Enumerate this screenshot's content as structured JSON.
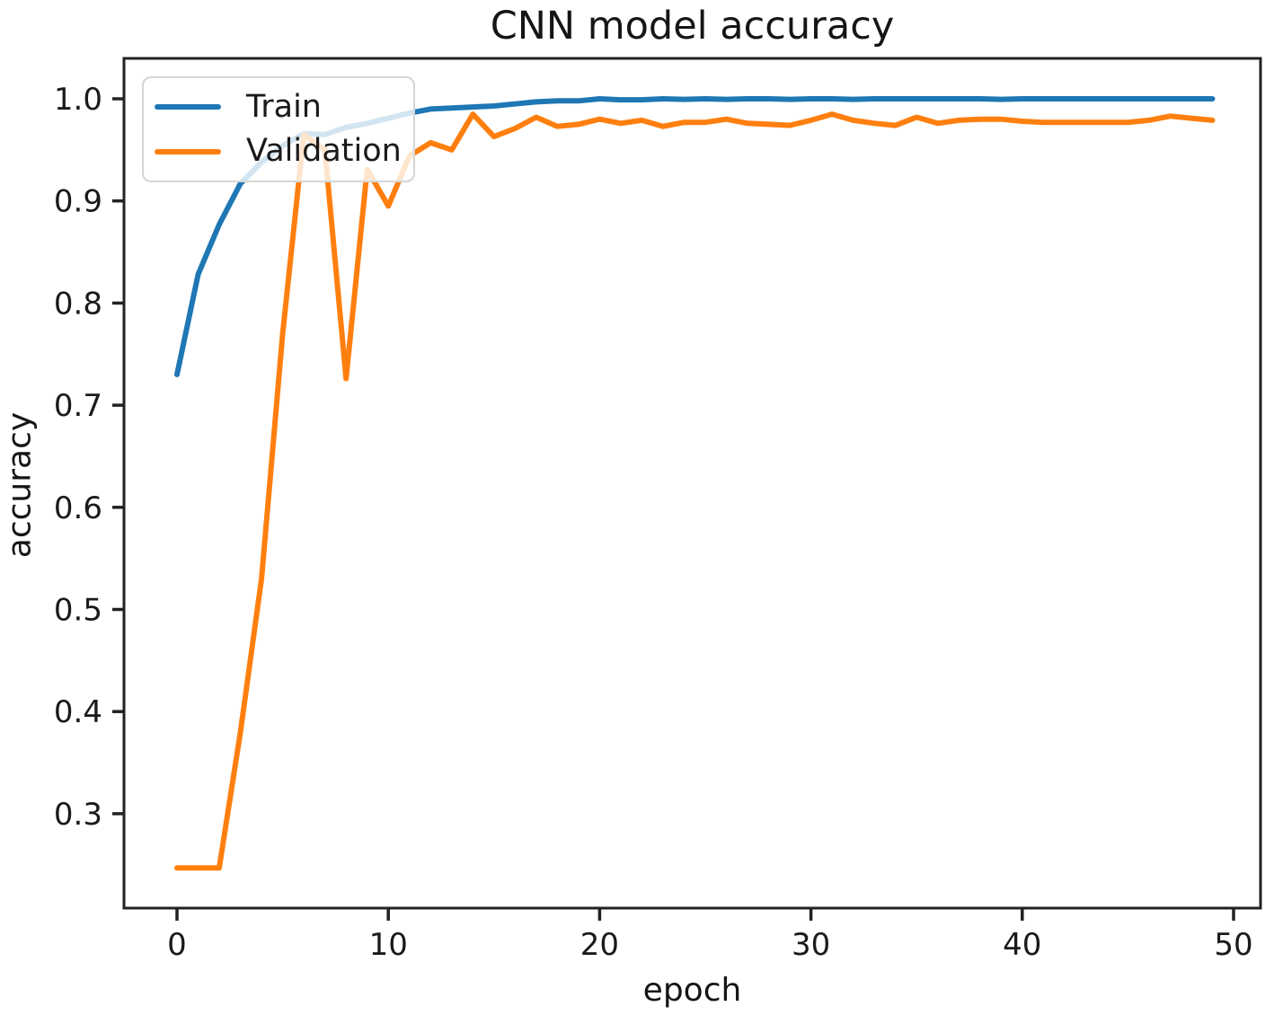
{
  "chart_data": {
    "type": "line",
    "title": "CNN model accuracy",
    "xlabel": "epoch",
    "ylabel": "accuracy",
    "grid": false,
    "legend_position": "upper left",
    "xlim": [
      -2.45,
      51.45
    ],
    "ylim": [
      0.209,
      1.038
    ],
    "x_ticks": [
      0,
      10,
      20,
      30,
      40,
      50
    ],
    "y_ticks": [
      0.3,
      0.4,
      0.5,
      0.6,
      0.7,
      0.8,
      0.9,
      1.0
    ],
    "x": [
      0,
      1,
      2,
      3,
      4,
      5,
      6,
      7,
      8,
      9,
      10,
      11,
      12,
      13,
      14,
      15,
      16,
      17,
      18,
      19,
      20,
      21,
      22,
      23,
      24,
      25,
      26,
      27,
      28,
      29,
      30,
      31,
      32,
      33,
      34,
      35,
      36,
      37,
      38,
      39,
      40,
      41,
      42,
      43,
      44,
      45,
      46,
      47,
      48,
      49
    ],
    "series": [
      {
        "name": "Train",
        "color": "#1f77b4",
        "values": [
          0.73,
          0.828,
          0.877,
          0.917,
          0.938,
          0.954,
          0.966,
          0.965,
          0.972,
          0.976,
          0.981,
          0.986,
          0.99,
          0.991,
          0.992,
          0.993,
          0.995,
          0.997,
          0.998,
          0.998,
          1.0,
          0.999,
          0.999,
          1.0,
          0.9995,
          1.0,
          0.9995,
          1.0,
          1.0,
          0.9995,
          1.0,
          1.0,
          0.9995,
          1.0,
          1.0,
          1.0,
          1.0,
          1.0,
          1.0,
          0.9995,
          1.0,
          1.0,
          1.0,
          1.0,
          1.0,
          1.0,
          1.0,
          1.0,
          1.0,
          1.0
        ]
      },
      {
        "name": "Validation",
        "color": "#ff7f0e",
        "values": [
          0.247,
          0.247,
          0.247,
          0.38,
          0.53,
          0.77,
          0.965,
          0.95,
          0.726,
          0.931,
          0.895,
          0.944,
          0.957,
          0.95,
          0.985,
          0.963,
          0.971,
          0.982,
          0.973,
          0.975,
          0.98,
          0.976,
          0.979,
          0.973,
          0.977,
          0.977,
          0.98,
          0.976,
          0.975,
          0.974,
          0.979,
          0.985,
          0.979,
          0.976,
          0.974,
          0.982,
          0.976,
          0.979,
          0.98,
          0.98,
          0.978,
          0.977,
          0.977,
          0.977,
          0.977,
          0.977,
          0.979,
          0.983,
          0.981,
          0.979
        ]
      }
    ]
  },
  "colors": {
    "frame": "#222222",
    "tick_text": "#1a1a1a"
  }
}
